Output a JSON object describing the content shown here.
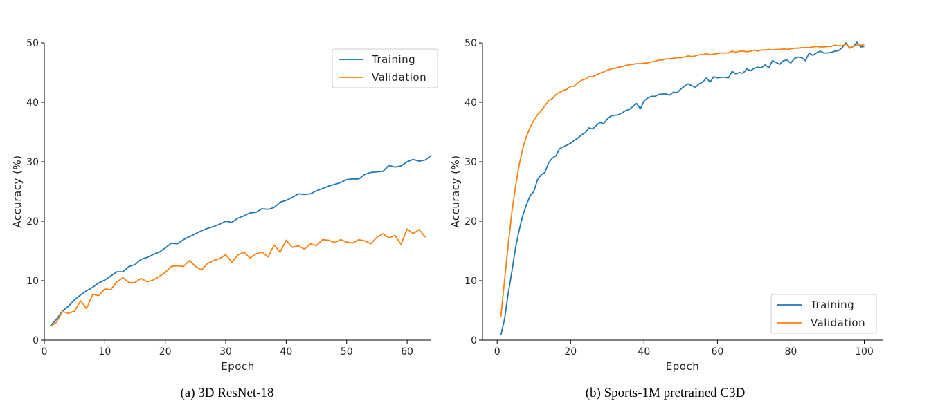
{
  "colors": {
    "training": "#1f77b4",
    "validation": "#ff7f0e"
  },
  "chart_data": [
    {
      "type": "line",
      "caption": "(a) 3D ResNet-18",
      "xlabel": "Epoch",
      "ylabel": "Accuracy (%)",
      "xlim": [
        0,
        64
      ],
      "ylim": [
        0,
        50
      ],
      "xticks": [
        0,
        10,
        20,
        30,
        40,
        50,
        60
      ],
      "yticks": [
        0,
        10,
        20,
        30,
        40,
        50
      ],
      "grid": false,
      "legend_position": "top-right",
      "series": [
        {
          "name": "Training",
          "x": [
            1,
            2,
            3,
            4,
            5,
            6,
            7,
            8,
            9,
            10,
            11,
            12,
            13,
            14,
            15,
            16,
            17,
            18,
            19,
            20,
            21,
            22,
            23,
            24,
            25,
            26,
            27,
            28,
            29,
            30,
            31,
            32,
            33,
            34,
            35,
            36,
            37,
            38,
            39,
            40,
            41,
            42,
            43,
            44,
            45,
            46,
            47,
            48,
            49,
            50,
            51,
            52,
            53,
            54,
            55,
            56,
            57,
            58,
            59,
            60,
            61,
            62,
            63,
            64
          ],
          "values": [
            2.4,
            3.5,
            4.9,
            5.7,
            6.8,
            7.6,
            8.3,
            8.9,
            9.6,
            10.1,
            10.8,
            11.5,
            11.5,
            12.4,
            12.7,
            13.6,
            13.9,
            14.4,
            14.8,
            15.5,
            16.3,
            16.2,
            16.9,
            17.4,
            17.9,
            18.4,
            18.8,
            19.1,
            19.5,
            20.0,
            19.8,
            20.5,
            20.9,
            21.4,
            21.5,
            22.1,
            22.0,
            22.3,
            23.2,
            23.5,
            24.0,
            24.6,
            24.5,
            24.6,
            25.1,
            25.5,
            25.9,
            26.2,
            26.5,
            27.0,
            27.1,
            27.1,
            27.9,
            28.2,
            28.3,
            28.4,
            29.4,
            29.1,
            29.3,
            30.0,
            30.4,
            30.1,
            30.3,
            31.1
          ]
        },
        {
          "name": "Validation",
          "x": [
            1,
            2,
            3,
            4,
            5,
            6,
            7,
            8,
            9,
            10,
            11,
            12,
            13,
            14,
            15,
            16,
            17,
            18,
            19,
            20,
            21,
            22,
            23,
            24,
            25,
            26,
            27,
            28,
            29,
            30,
            31,
            32,
            33,
            34,
            35,
            36,
            37,
            38,
            39,
            40,
            41,
            42,
            43,
            44,
            45,
            46,
            47,
            48,
            49,
            50,
            51,
            52,
            53,
            54,
            55,
            56,
            57,
            58,
            59,
            60,
            61,
            62,
            63
          ],
          "values": [
            2.3,
            3.0,
            4.8,
            4.5,
            4.9,
            6.6,
            5.3,
            7.7,
            7.5,
            8.6,
            8.5,
            9.8,
            10.5,
            9.7,
            9.7,
            10.4,
            9.8,
            10.1,
            10.7,
            11.4,
            12.4,
            12.5,
            12.4,
            13.4,
            12.4,
            11.8,
            12.9,
            13.4,
            13.7,
            14.4,
            13.1,
            14.3,
            14.8,
            13.8,
            14.5,
            14.8,
            14.0,
            16.0,
            14.8,
            16.8,
            15.6,
            15.9,
            15.3,
            16.2,
            15.9,
            16.9,
            16.8,
            16.4,
            16.9,
            16.5,
            16.3,
            16.9,
            16.7,
            16.2,
            17.3,
            17.9,
            17.2,
            17.6,
            16.1,
            18.7,
            17.9,
            18.6,
            17.3
          ]
        }
      ]
    },
    {
      "type": "line",
      "caption": "(b) Sports-1M pretrained C3D",
      "xlabel": "Epoch",
      "ylabel": "Accuracy (%)",
      "xlim": [
        -4,
        105
      ],
      "ylim": [
        0,
        50
      ],
      "xticks": [
        0,
        20,
        40,
        60,
        80,
        100
      ],
      "yticks": [
        0,
        10,
        20,
        30,
        40,
        50
      ],
      "grid": false,
      "legend_position": "bottom-right",
      "series": [
        {
          "name": "Training",
          "x": [
            1,
            2,
            3,
            4,
            5,
            6,
            7,
            8,
            9,
            10,
            11,
            12,
            13,
            14,
            15,
            16,
            17,
            18,
            19,
            20,
            21,
            22,
            23,
            24,
            25,
            26,
            27,
            28,
            29,
            30,
            31,
            32,
            33,
            34,
            35,
            36,
            37,
            38,
            39,
            40,
            41,
            42,
            43,
            44,
            45,
            46,
            47,
            48,
            49,
            50,
            51,
            52,
            53,
            54,
            55,
            56,
            57,
            58,
            59,
            60,
            61,
            62,
            63,
            64,
            65,
            66,
            67,
            68,
            69,
            70,
            71,
            72,
            73,
            74,
            75,
            76,
            77,
            78,
            79,
            80,
            81,
            82,
            83,
            84,
            85,
            86,
            87,
            88,
            89,
            90,
            91,
            92,
            93,
            94,
            95,
            96,
            97,
            98,
            99,
            100
          ],
          "values": [
            0.8,
            3.5,
            7.8,
            11.5,
            15.5,
            18.5,
            21.0,
            22.8,
            24.3,
            25.0,
            27.0,
            27.8,
            28.2,
            29.8,
            30.6,
            31.0,
            32.2,
            32.5,
            32.8,
            33.1,
            33.6,
            34.0,
            34.5,
            34.9,
            35.7,
            35.5,
            36.1,
            36.6,
            36.4,
            37.2,
            37.7,
            37.8,
            37.9,
            38.2,
            38.6,
            38.8,
            39.3,
            39.8,
            38.9,
            40.2,
            40.7,
            41.0,
            41.0,
            41.3,
            41.4,
            41.4,
            41.2,
            41.7,
            41.6,
            42.2,
            42.7,
            43.1,
            42.8,
            42.5,
            43.1,
            43.4,
            44.1,
            43.4,
            44.3,
            44.1,
            44.2,
            44.2,
            44.1,
            45.2,
            44.8,
            45.0,
            44.9,
            45.6,
            45.3,
            45.7,
            45.9,
            45.8,
            46.3,
            45.8,
            47.0,
            46.7,
            46.4,
            47.0,
            47.1,
            46.6,
            47.4,
            47.6,
            47.5,
            47.0,
            48.3,
            47.9,
            48.3,
            48.6,
            48.3,
            48.3,
            48.4,
            48.6,
            48.7,
            49.2,
            50.0,
            49.1,
            49.4,
            50.1,
            49.3,
            49.4
          ]
        },
        {
          "name": "Validation",
          "x": [
            1,
            2,
            3,
            4,
            5,
            6,
            7,
            8,
            9,
            10,
            11,
            12,
            13,
            14,
            15,
            16,
            17,
            18,
            19,
            20,
            21,
            22,
            23,
            24,
            25,
            26,
            27,
            28,
            29,
            30,
            31,
            32,
            33,
            34,
            35,
            36,
            37,
            38,
            39,
            40,
            41,
            42,
            43,
            44,
            45,
            46,
            47,
            48,
            49,
            50,
            51,
            52,
            53,
            54,
            55,
            56,
            57,
            58,
            59,
            60,
            61,
            62,
            63,
            64,
            65,
            66,
            67,
            68,
            69,
            70,
            71,
            72,
            73,
            74,
            75,
            76,
            77,
            78,
            79,
            80,
            81,
            82,
            83,
            84,
            85,
            86,
            87,
            88,
            89,
            90,
            91,
            92,
            93,
            94,
            95,
            96,
            97,
            98,
            99,
            100
          ],
          "values": [
            3.9,
            10.0,
            16.0,
            21.5,
            25.8,
            29.5,
            32.3,
            34.3,
            35.8,
            37.0,
            37.9,
            38.6,
            39.4,
            40.3,
            40.6,
            41.3,
            41.7,
            42.0,
            42.2,
            42.7,
            42.7,
            43.3,
            43.7,
            43.9,
            44.3,
            44.3,
            44.6,
            44.9,
            45.1,
            45.4,
            45.6,
            45.7,
            45.9,
            46.0,
            46.2,
            46.3,
            46.4,
            46.5,
            46.5,
            46.6,
            46.6,
            46.8,
            46.9,
            47.1,
            47.1,
            47.3,
            47.3,
            47.4,
            47.5,
            47.5,
            47.6,
            47.8,
            47.7,
            47.8,
            48.0,
            48.0,
            48.2,
            48.0,
            48.1,
            48.2,
            48.3,
            48.3,
            48.3,
            48.6,
            48.4,
            48.6,
            48.6,
            48.5,
            48.6,
            48.8,
            48.6,
            48.8,
            48.8,
            48.9,
            48.8,
            48.9,
            48.9,
            49.0,
            48.9,
            49.0,
            49.1,
            49.1,
            49.2,
            49.2,
            49.2,
            49.3,
            49.4,
            49.3,
            49.3,
            49.4,
            49.4,
            49.6,
            49.5,
            49.5,
            49.8,
            49.2,
            49.4,
            49.6,
            49.6,
            49.7
          ]
        }
      ]
    }
  ]
}
